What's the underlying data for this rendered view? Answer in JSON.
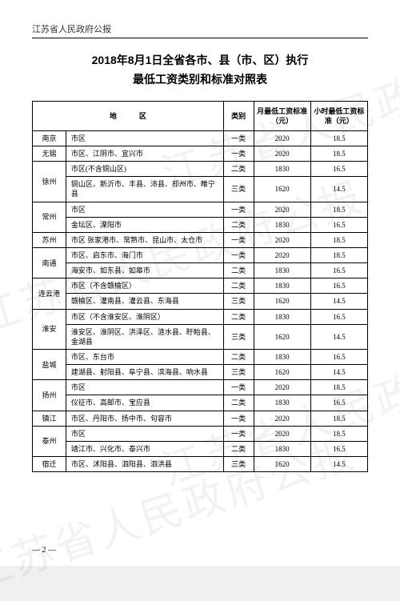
{
  "header": "江苏省人民政府公报",
  "title_l1": "2018年8月1日全省各市、县（市、区）执行",
  "title_l2": "最低工资类别和标准对照表",
  "th_region": "地区",
  "th_cat": "类别",
  "th_monthly": "月最低工资标准（元）",
  "th_hourly": "小时最低工资标准（元）",
  "watermark": "江苏省人民政府公报",
  "page_num": "— 2 —",
  "rows": [
    {
      "city": "南京",
      "span": 1,
      "area": "市区",
      "cat": "一类",
      "m": "2020",
      "h": "18.5"
    },
    {
      "city": "无锡",
      "span": 1,
      "area": "市区、江阴市、宜兴市",
      "cat": "一类",
      "m": "2020",
      "h": "18.5"
    },
    {
      "city": "徐州",
      "span": 2,
      "area": "市区(不含铜山区)",
      "cat": "二类",
      "m": "1830",
      "h": "16.5"
    },
    {
      "area": "铜山区、新沂市、丰县、沛县、邳州市、睢宁县",
      "cat": "三类",
      "m": "1620",
      "h": "14.5"
    },
    {
      "city": "常州",
      "span": 2,
      "area": "市区",
      "cat": "一类",
      "m": "2020",
      "h": "18.5"
    },
    {
      "area": "金坛区、溧阳市",
      "cat": "二类",
      "m": "1830",
      "h": "16.5"
    },
    {
      "city": "苏州",
      "span": 1,
      "area": "市区\n张家港市、常熟市、昆山市、太仓市",
      "cat": "一类",
      "m": "2020",
      "h": "18.5"
    },
    {
      "city": "南通",
      "span": 2,
      "area": "市区、启东市、海门市",
      "cat": "一类",
      "m": "2020",
      "h": "18.5"
    },
    {
      "area": "海安市、如东县、如皋市",
      "cat": "二类",
      "m": "1830",
      "h": "16.5"
    },
    {
      "city": "连云港",
      "span": 2,
      "area": "市区（不含赣榆区）",
      "cat": "二类",
      "m": "1830",
      "h": "16.5"
    },
    {
      "area": "赣榆区、灌南县、灌云县、东海县",
      "cat": "三类",
      "m": "1620",
      "h": "14.5"
    },
    {
      "city": "淮安",
      "span": 2,
      "area": "市区（不含淮安区、淮阴区）",
      "cat": "二类",
      "m": "1830",
      "h": "16.5"
    },
    {
      "area": "淮安区、淮阴区、洪泽区、涟水县、盱眙县、金湖县",
      "cat": "三类",
      "m": "1620",
      "h": "14.5"
    },
    {
      "city": "盐城",
      "span": 2,
      "area": "市区、东台市",
      "cat": "二类",
      "m": "1830",
      "h": "16.5"
    },
    {
      "area": "建湖县、射阳县、阜宁县、滨海县、响水县",
      "cat": "三类",
      "m": "1620",
      "h": "14.5"
    },
    {
      "city": "扬州",
      "span": 2,
      "area": "市区",
      "cat": "一类",
      "m": "2020",
      "h": "18.5"
    },
    {
      "area": "仪征市、高邮市、宝应县",
      "cat": "二类",
      "m": "1830",
      "h": "16.5"
    },
    {
      "city": "镇江",
      "span": 1,
      "area": "市区、丹阳市、扬中市、句容市",
      "cat": "一类",
      "m": "2020",
      "h": "18.5"
    },
    {
      "city": "泰州",
      "span": 2,
      "area": "市区",
      "cat": "一类",
      "m": "2020",
      "h": "18.5"
    },
    {
      "area": "靖江市、兴化市、泰兴市",
      "cat": "二类",
      "m": "1830",
      "h": "16.5"
    },
    {
      "city": "宿迁",
      "span": 1,
      "area": "市区、沭阳县、泗阳县、泗洪县",
      "cat": "三类",
      "m": "1620",
      "h": "14.5"
    }
  ]
}
